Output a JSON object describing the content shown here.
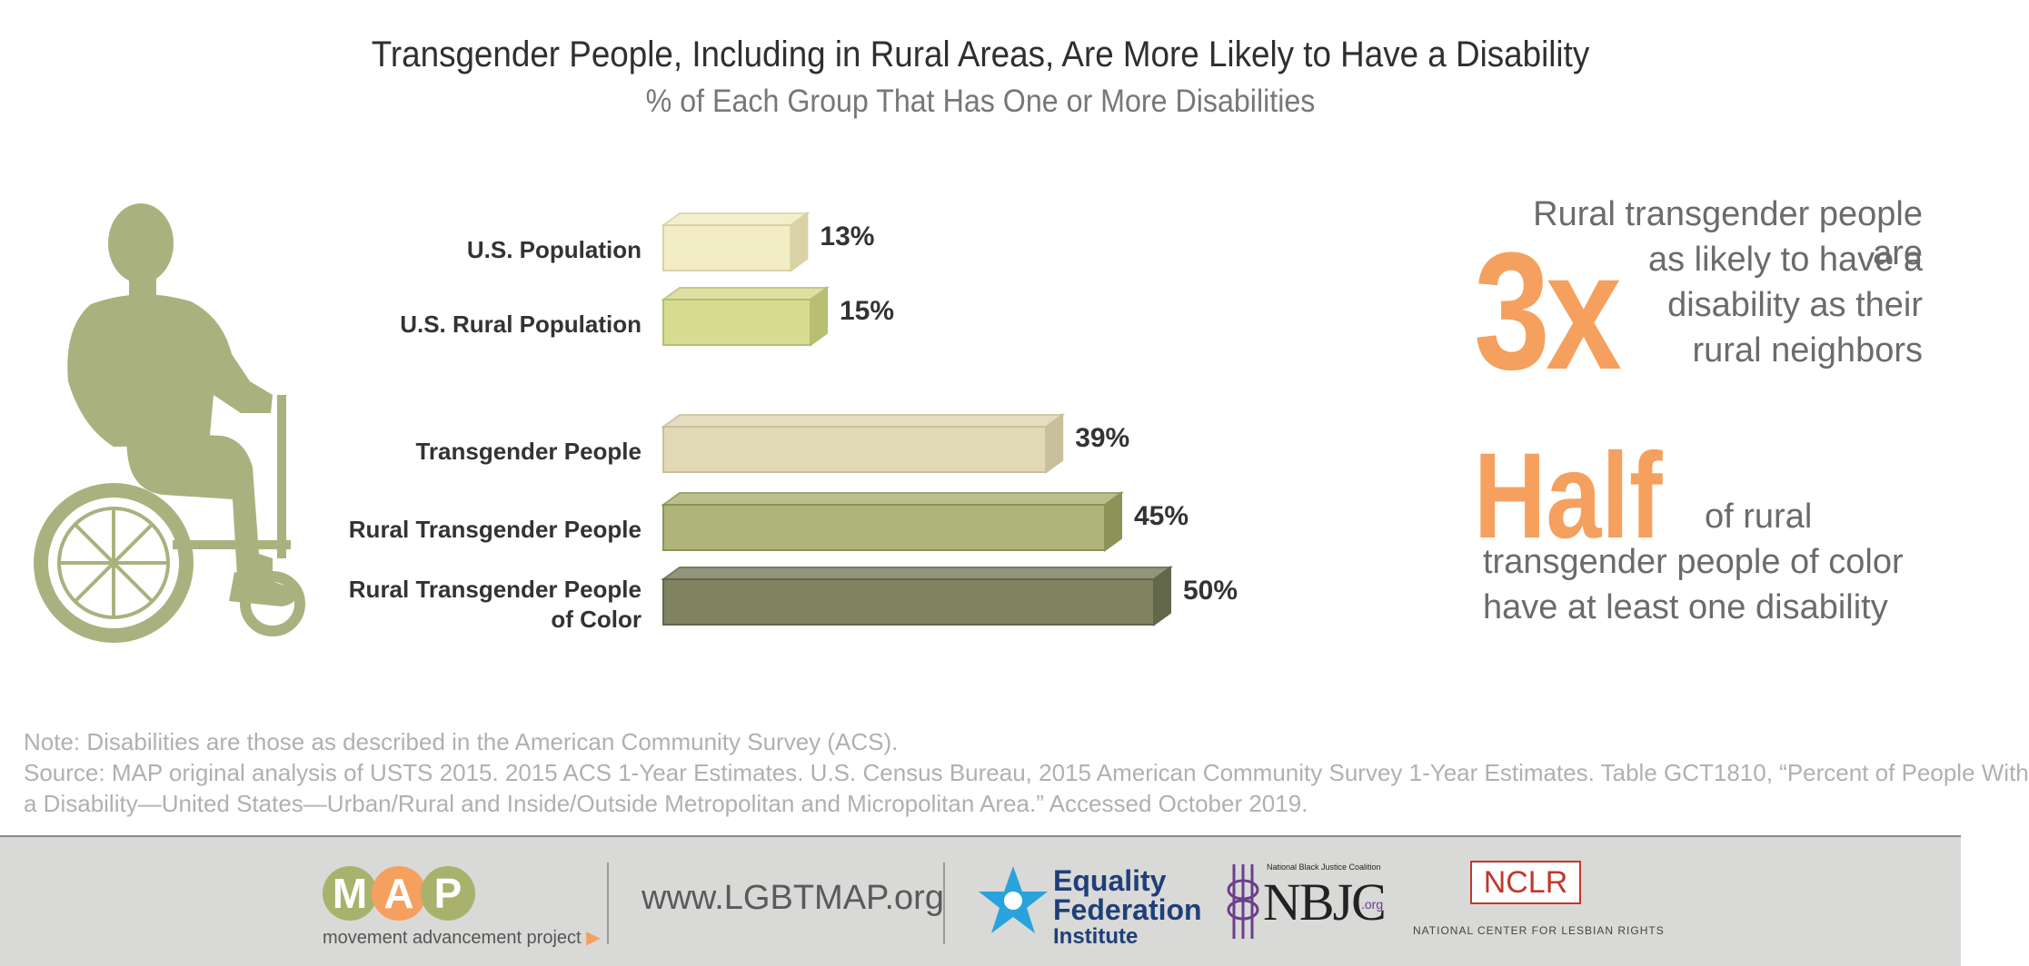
{
  "header": {
    "title": "Transgender People, Including in Rural Areas, Are More Likely to Have a Disability",
    "subtitle": "% of Each Group That Has One or More Disabilities"
  },
  "chart_data": {
    "type": "bar",
    "orientation": "horizontal",
    "title": "Transgender People, Including in Rural Areas, Are More Likely to Have a Disability",
    "subtitle": "% of Each Group That Has One or More Disabilities",
    "categories": [
      "U.S. Population",
      "U.S. Rural Population",
      "Transgender People",
      "Rural Transgender People",
      "Rural Transgender People of Color"
    ],
    "values": [
      13,
      15,
      39,
      45,
      50
    ],
    "value_labels": [
      "13%",
      "15%",
      "39%",
      "45%",
      "50%"
    ],
    "unit": "%",
    "bar_colors": [
      "#f2edc4",
      "#d6dc92",
      "#e1d8b6",
      "#afb57a",
      "#7f8360"
    ],
    "bar_colors_dark": [
      "#d9d2a6",
      "#b8be72",
      "#c9bf9b",
      "#8c9258",
      "#62664a"
    ],
    "grid": false,
    "legend": "none"
  },
  "callouts": {
    "first": {
      "big": "3x",
      "lines": [
        "Rural transgender people are",
        "as likely to have a",
        "disability as their",
        "rural neighbors"
      ]
    },
    "second": {
      "big": "Half",
      "lines": [
        "of rural",
        "transgender people of color",
        "have at least one disability"
      ]
    },
    "accent_color": "#f5a05e"
  },
  "notes": {
    "note": "Note: Disabilities are those as described in the American Community Survey (ACS).",
    "source_line1": "Source: MAP original analysis of USTS 2015. 2015 ACS 1-Year Estimates. U.S. Census Bureau, 2015 American Community Survey 1-Year Estimates. Table GCT1810, “Percent of People With",
    "source_line2": "a Disability—United States—Urban/Rural and Inside/Outside Metropolitan and Micropolitan Area.” Accessed October 2019."
  },
  "footer": {
    "map_letters": [
      "M",
      "A",
      "P"
    ],
    "map_colors": [
      "#a9b26d",
      "#f5a05e",
      "#a9b26d"
    ],
    "map_sub": "movement advancement project",
    "url": "www.LGBTMAP.org",
    "efi_lines": [
      "Equality",
      "Federation",
      "Institute"
    ],
    "nbjc_top": "National Black Justice Coalition",
    "nbjc": "NBJC",
    "nbjc_org": ".org",
    "nclr": "NCLR",
    "nclr_sub": "NATIONAL CENTER FOR LESBIAN RIGHTS"
  },
  "icons": {
    "figure": "wheelchair-user-icon",
    "efi": "star-icon",
    "nbjc": "nbjc-emblem-icon"
  }
}
